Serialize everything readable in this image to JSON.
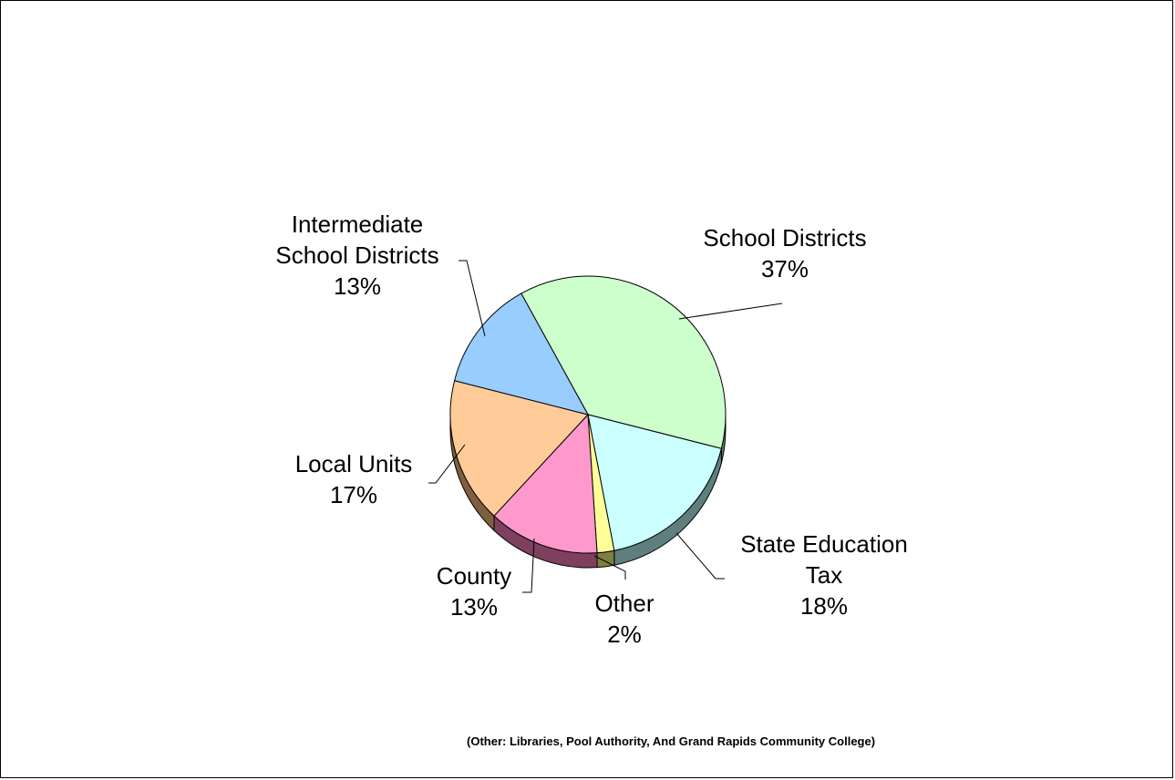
{
  "chart_data": {
    "type": "pie",
    "style": "3d-exploded-none",
    "slices": [
      {
        "label": [
          "School Districts"
        ],
        "value": 37,
        "pct": "37%",
        "color": "#CCFFCC",
        "side": "#5f7f5f"
      },
      {
        "label": [
          "State Education",
          "Tax"
        ],
        "value": 18,
        "pct": "18%",
        "color": "#CCFFFF",
        "side": "#5f7f7f"
      },
      {
        "label": [
          "Other"
        ],
        "value": 2,
        "pct": "2%",
        "color": "#FFFF99",
        "side": "#7f7f3f"
      },
      {
        "label": [
          "County"
        ],
        "value": 13,
        "pct": "13%",
        "color": "#FF99CC",
        "side": "#7f3f5f"
      },
      {
        "label": [
          "Local Units"
        ],
        "value": 17,
        "pct": "17%",
        "color": "#FFCC99",
        "side": "#7f5f3f"
      },
      {
        "label": [
          "Intermediate",
          "School Districts"
        ],
        "value": 13,
        "pct": "13%",
        "color": "#99CCFF",
        "side": "#3f5f7f"
      }
    ]
  },
  "footnote": "(Other: Libraries, Pool Authority, And Grand Rapids Community College)"
}
